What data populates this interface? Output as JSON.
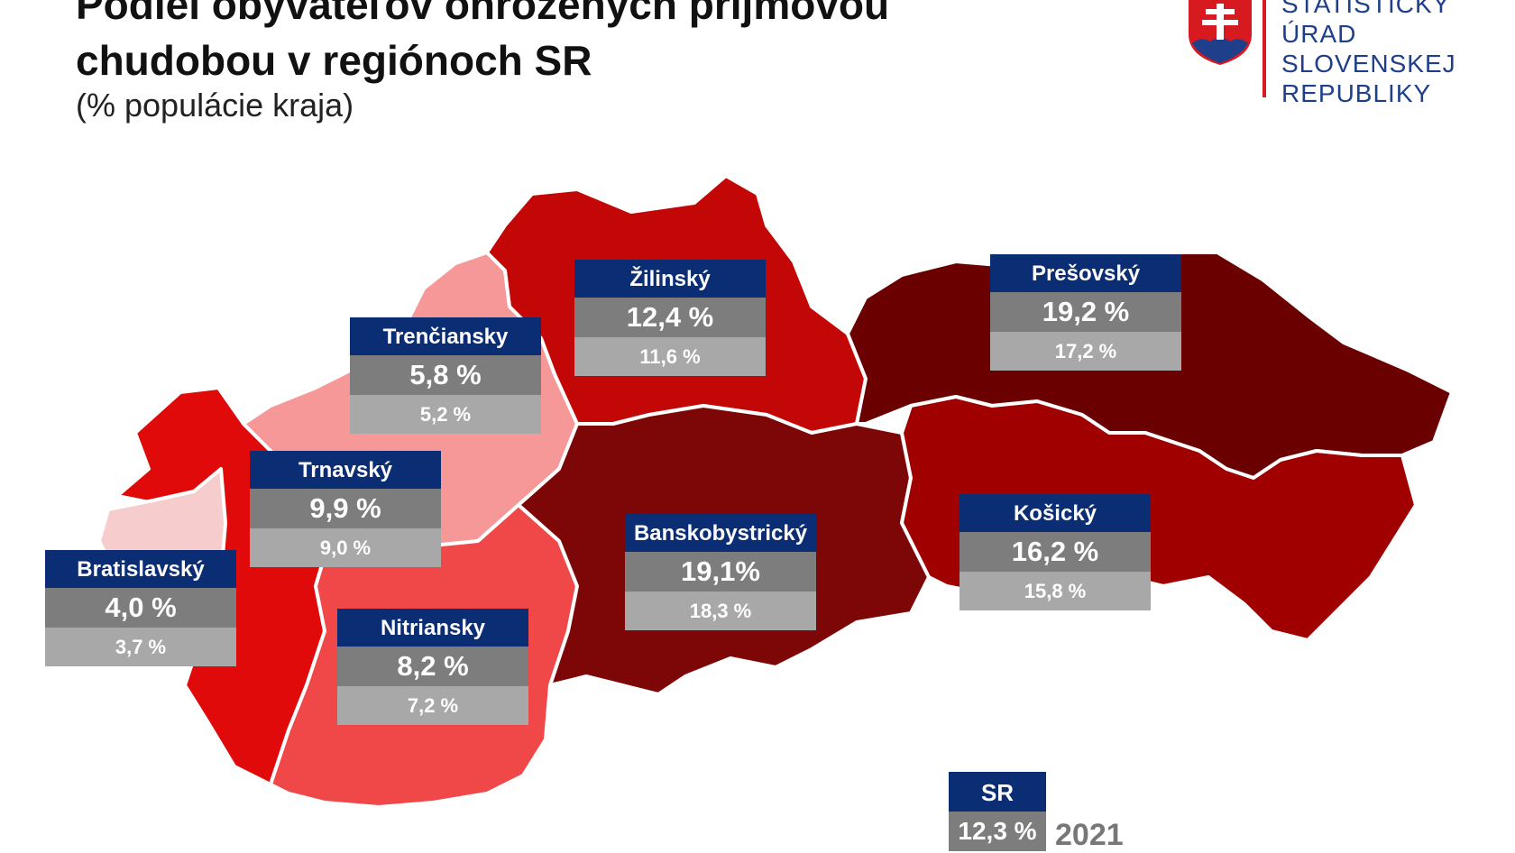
{
  "header": {
    "title_line1": "Podiel obyvateľov ohrozených príjmovou",
    "title_line2": "chudobou v regiónoch SR",
    "subtitle": "(% populácie kraja)"
  },
  "logo": {
    "line1": "ŠTATISTICKÝ",
    "line2": "ÚRAD",
    "line3": "SLOVENSKEJ",
    "line4": "REPUBLIKY"
  },
  "regions": [
    {
      "id": "bratislavsky",
      "name": "Bratislavský",
      "value": "4,0 %",
      "prev": "3,7 %",
      "color": "#f6cccc"
    },
    {
      "id": "trnavsky",
      "name": "Trnavský",
      "value": "9,9 %",
      "prev": "9,0 %",
      "color": "#e10a0a"
    },
    {
      "id": "trenciansky",
      "name": "Trenčiansky",
      "value": "5,8 %",
      "prev": "5,2 %",
      "color": "#f79898"
    },
    {
      "id": "nitriansky",
      "name": "Nitriansky",
      "value": "8,2 %",
      "prev": "7,2 %",
      "color": "#f04848"
    },
    {
      "id": "zilinsky",
      "name": "Žilinský",
      "value": "12,4 %",
      "prev": "11,6 %",
      "color": "#c30606"
    },
    {
      "id": "banskobystricky",
      "name": "Banskobystrický",
      "value": "19,1%",
      "prev": "18,3 %",
      "color": "#7d0707"
    },
    {
      "id": "presovsky",
      "name": "Prešovský",
      "value": "19,2 %",
      "prev": "17,2 %",
      "color": "#6a0000"
    },
    {
      "id": "kosicky",
      "name": "Košický",
      "value": "16,2 %",
      "prev": "15,8 %",
      "color": "#a00000"
    }
  ],
  "country": {
    "name": "SR",
    "value": "12,3 %",
    "year": "2021"
  },
  "colors": {
    "label_header": "#0b2d74",
    "label_value": "#7d7d7d",
    "label_prev": "#a8a8a8"
  }
}
